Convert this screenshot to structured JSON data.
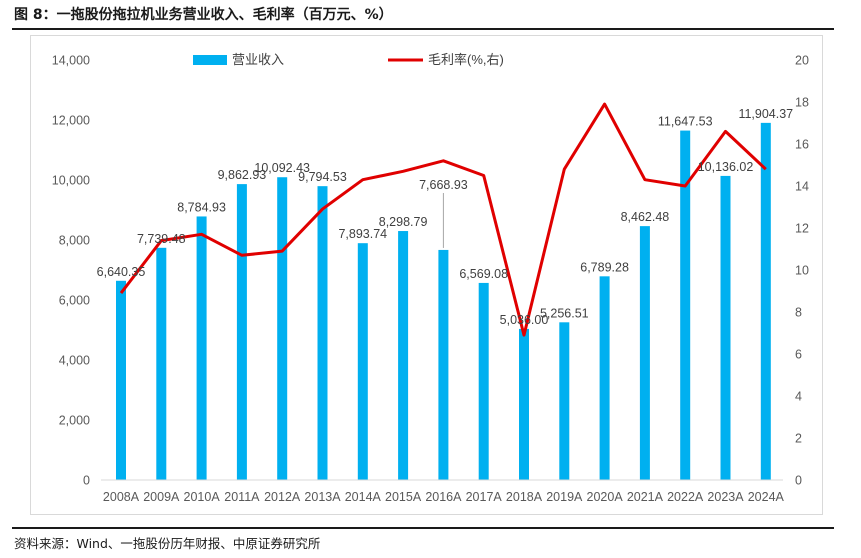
{
  "figure": {
    "title": "图 8：一拖股份拖拉机业务营业收入、毛利率（百万元、%）",
    "source": "资料来源：Wind、一拖股份历年财报、中原证券研究所"
  },
  "colors": {
    "bar": "#00b0f0",
    "line": "#e00000",
    "axis_text": "#595959",
    "label_text": "#404040",
    "rule": "#1a1a1a"
  },
  "chart_data": {
    "type": "bar",
    "title": "",
    "categories": [
      "2008A",
      "2009A",
      "2010A",
      "2011A",
      "2012A",
      "2013A",
      "2014A",
      "2015A",
      "2016A",
      "2017A",
      "2018A",
      "2019A",
      "2020A",
      "2021A",
      "2022A",
      "2023A",
      "2024A"
    ],
    "series": [
      {
        "name": "营业收入",
        "type": "bar",
        "axis": "left",
        "values": [
          6640.35,
          7739.48,
          8784.93,
          9862.93,
          10092.43,
          9794.53,
          7893.74,
          8298.79,
          7668.93,
          6569.08,
          5036.0,
          5256.51,
          6789.28,
          8462.48,
          11647.53,
          10136.02,
          11904.37
        ],
        "labels": [
          "6,640.35",
          "7,739.48",
          "8,784.93",
          "9,862.93",
          "10,092.43",
          "9,794.53",
          "7,893.74",
          "8,298.79",
          "7,668.93",
          "6,569.08",
          "5,036.00",
          "5,256.51",
          "6,789.28",
          "8,462.48",
          "11,647.53",
          "10,136.02",
          "11,904.37"
        ]
      },
      {
        "name": "毛利率(%,右)",
        "type": "line",
        "axis": "right",
        "values": [
          8.9,
          11.4,
          11.7,
          10.7,
          10.9,
          12.9,
          14.3,
          14.7,
          15.2,
          14.5,
          6.9,
          14.8,
          17.9,
          14.3,
          14.0,
          16.6,
          14.8
        ]
      }
    ],
    "y_left": {
      "min": 0,
      "max": 14000,
      "ticks": [
        "0",
        "2,000",
        "4,000",
        "6,000",
        "8,000",
        "10,000",
        "12,000",
        "14,000"
      ],
      "tick_values": [
        0,
        2000,
        4000,
        6000,
        8000,
        10000,
        12000,
        14000
      ]
    },
    "y_right": {
      "min": 0,
      "max": 20,
      "ticks": [
        "0",
        "2",
        "4",
        "6",
        "8",
        "10",
        "12",
        "14",
        "16",
        "18",
        "20"
      ],
      "tick_values": [
        0,
        2,
        4,
        6,
        8,
        10,
        12,
        14,
        16,
        18,
        20
      ]
    },
    "grid": false,
    "legend_position": "top-center"
  }
}
